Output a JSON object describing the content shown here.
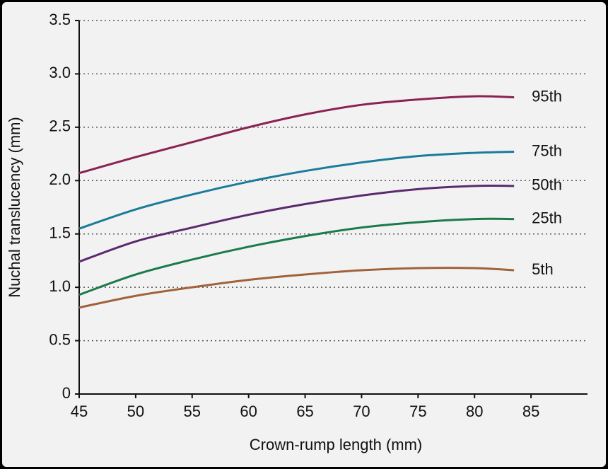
{
  "chart_data": {
    "type": "line",
    "x_label": "Crown-rump length (mm)",
    "y_label": "Nuchal translucency (mm)",
    "x": [
      45,
      50,
      55,
      60,
      65,
      70,
      75,
      80,
      83.5
    ],
    "xlim": [
      45,
      90
    ],
    "xticks": [
      45,
      50,
      55,
      60,
      65,
      70,
      75,
      80,
      85
    ],
    "ylim": [
      0,
      3.5
    ],
    "yticks": [
      0,
      {
        "value": 0.5,
        "label": "0.5"
      },
      {
        "value": 1,
        "label": "1.0"
      },
      {
        "value": 1.5,
        "label": "1.5"
      },
      {
        "value": 2,
        "label": "2.0"
      },
      {
        "value": 2.5,
        "label": "2.5"
      },
      {
        "value": 3,
        "label": "3.0"
      },
      {
        "value": 3.5,
        "label": "3.5"
      }
    ],
    "grid": true,
    "series": [
      {
        "name": "95th",
        "color": "#8b2252",
        "values": [
          2.07,
          2.22,
          2.36,
          2.5,
          2.62,
          2.71,
          2.76,
          2.79,
          2.78
        ]
      },
      {
        "name": "75th",
        "color": "#1b7b9b",
        "values": [
          1.55,
          1.73,
          1.87,
          1.99,
          2.09,
          2.17,
          2.23,
          2.26,
          2.27
        ]
      },
      {
        "name": "50th",
        "color": "#5b2a6e",
        "values": [
          1.24,
          1.43,
          1.56,
          1.68,
          1.78,
          1.86,
          1.92,
          1.95,
          1.95
        ]
      },
      {
        "name": "25th",
        "color": "#1b7a4a",
        "values": [
          0.93,
          1.12,
          1.26,
          1.38,
          1.48,
          1.56,
          1.61,
          1.64,
          1.64
        ]
      },
      {
        "name": "5th",
        "color": "#a0623a",
        "values": [
          0.81,
          0.92,
          1.0,
          1.07,
          1.12,
          1.16,
          1.18,
          1.18,
          1.16
        ]
      }
    ]
  }
}
